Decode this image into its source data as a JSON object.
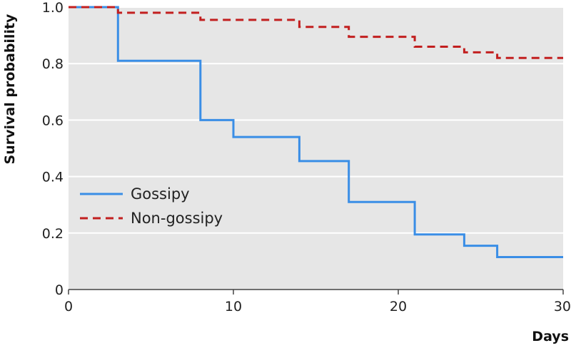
{
  "chart_data": {
    "type": "line",
    "step": true,
    "title": "",
    "xlabel": "Days",
    "ylabel": "Survival probability",
    "xlim": [
      0,
      30
    ],
    "ylim": [
      0,
      1.0
    ],
    "xticks": [
      0,
      10,
      20,
      30
    ],
    "yticks": [
      0,
      0.2,
      0.4,
      0.6,
      0.8,
      1.0
    ],
    "xtick_labels": [
      "0",
      "10",
      "20",
      "30"
    ],
    "ytick_labels": [
      "0",
      "0.2",
      "0.4",
      "0.6",
      "0.8",
      "1.0"
    ],
    "grid": "horizontal",
    "background": "#e6e6e6",
    "legend_position": "lower-left",
    "series": [
      {
        "name": "Gossipy",
        "color": "#3a8ee6",
        "dash": "solid",
        "x": [
          0,
          3,
          8,
          10,
          14,
          17,
          21,
          24,
          26,
          30
        ],
        "y": [
          1.0,
          0.81,
          0.6,
          0.54,
          0.455,
          0.31,
          0.195,
          0.155,
          0.115,
          0.115
        ]
      },
      {
        "name": "Non-gossipy",
        "color": "#c21f1f",
        "dash": "dashed",
        "x": [
          0,
          3,
          8,
          14,
          17,
          21,
          24,
          26,
          30
        ],
        "y": [
          1.0,
          0.98,
          0.955,
          0.93,
          0.895,
          0.86,
          0.84,
          0.82,
          0.82
        ]
      }
    ]
  }
}
